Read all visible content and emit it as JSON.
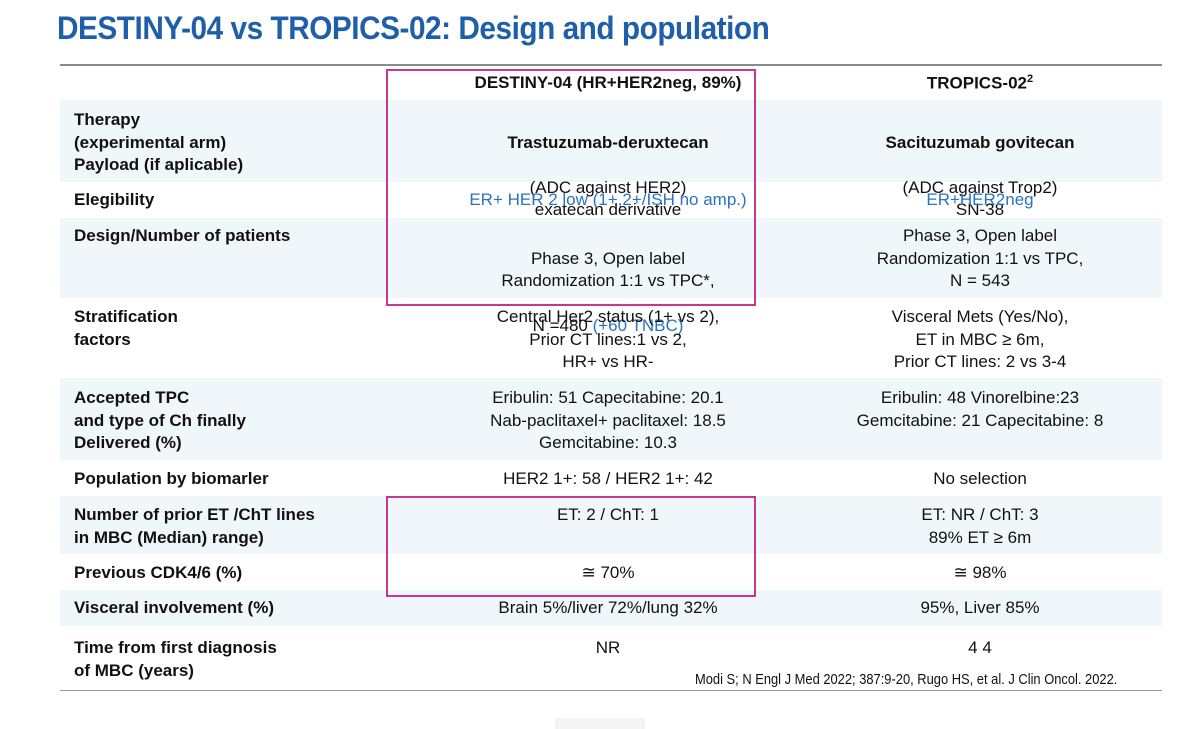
{
  "slide": {
    "title": "DESTINY-04 vs TROPICS-02: Design and population",
    "reference": "Modi S; N Engl J Med 2022; 387:9-20, Rugo HS, et al. J Clin Oncol. 2022."
  },
  "columns": {
    "destiny": "DESTINY-04 (HR+HER2neg, 89%)",
    "tropics": "TROPICS-02",
    "tropics_sup": "2"
  },
  "rows": {
    "therapy": {
      "label": "Therapy\n(experimental arm)\nPayload (if aplicable)",
      "destiny_drug": "Trastuzumab-deruxtecan",
      "destiny_rest": "(ADC against HER2)\nexatecan derivative",
      "tropics_drug": "Sacituzumab govitecan",
      "tropics_rest": "(ADC against Trop2)\nSN-38"
    },
    "eligibility": {
      "label": "Elegibility",
      "destiny": "ER+ HER 2 low (1+,2+/ISH no amp.)",
      "tropics": "ER+HER2neg"
    },
    "design": {
      "label": "Design/Number of patients",
      "destiny": "Phase 3, Open label\nRandomization 1:1 vs TPC*,",
      "destiny_n": "N =480 ",
      "destiny_tnbc": "(+60 TNBC)",
      "tropics": "Phase 3, Open label\nRandomization 1:1 vs TPC,\nN = 543"
    },
    "stratification": {
      "label": "Stratification\n factors",
      "destiny": "Central Her2 status (1+ vs 2),\nPrior CT lines:1 vs 2,\n   HR+ vs HR-",
      "tropics": "Visceral Mets (Yes/No),\nET in MBC ≥ 6m,\nPrior CT lines: 2 vs 3-4"
    },
    "tpc": {
      "label": "Accepted TPC\nand type of Ch finally\nDelivered (%)",
      "destiny": "Eribulin: 51 Capecitabine: 20.1\nNab-paclitaxel+ paclitaxel: 18.5\nGemcitabine: 10.3",
      "tropics": "Eribulin: 48 Vinorelbine:23\nGemcitabine: 21 Capecitabine: 8"
    },
    "biomarker": {
      "label": "Population by biomarler",
      "destiny": "HER2 1+: 58 /  HER2 1+: 42",
      "tropics": "No selection"
    },
    "prior_lines": {
      "label": "Number of prior ET /ChT lines\nin MBC (Median) range)",
      "destiny": "ET: 2  /  ChT:  1",
      "tropics": "ET: NR / ChT: 3\n89% ET ≥ 6m"
    },
    "cdk46": {
      "label": "Previous CDK4/6 (%)",
      "destiny": "≅ 70%",
      "tropics": "≅ 98%"
    },
    "visceral": {
      "label": "Visceral involvement (%)",
      "destiny": "Brain 5%/liver 72%/lung 32%",
      "tropics": "95%, Liver 85%"
    },
    "time_dx": {
      "label": "Time from first diagnosis\nof MBC (years)",
      "destiny": "NR",
      "tropics": "4 4"
    }
  },
  "colors": {
    "title": "#1f5ea8",
    "highlight": "#c4398e",
    "link_blue": "#2a73c0",
    "row_shade": "#eff7fb"
  }
}
